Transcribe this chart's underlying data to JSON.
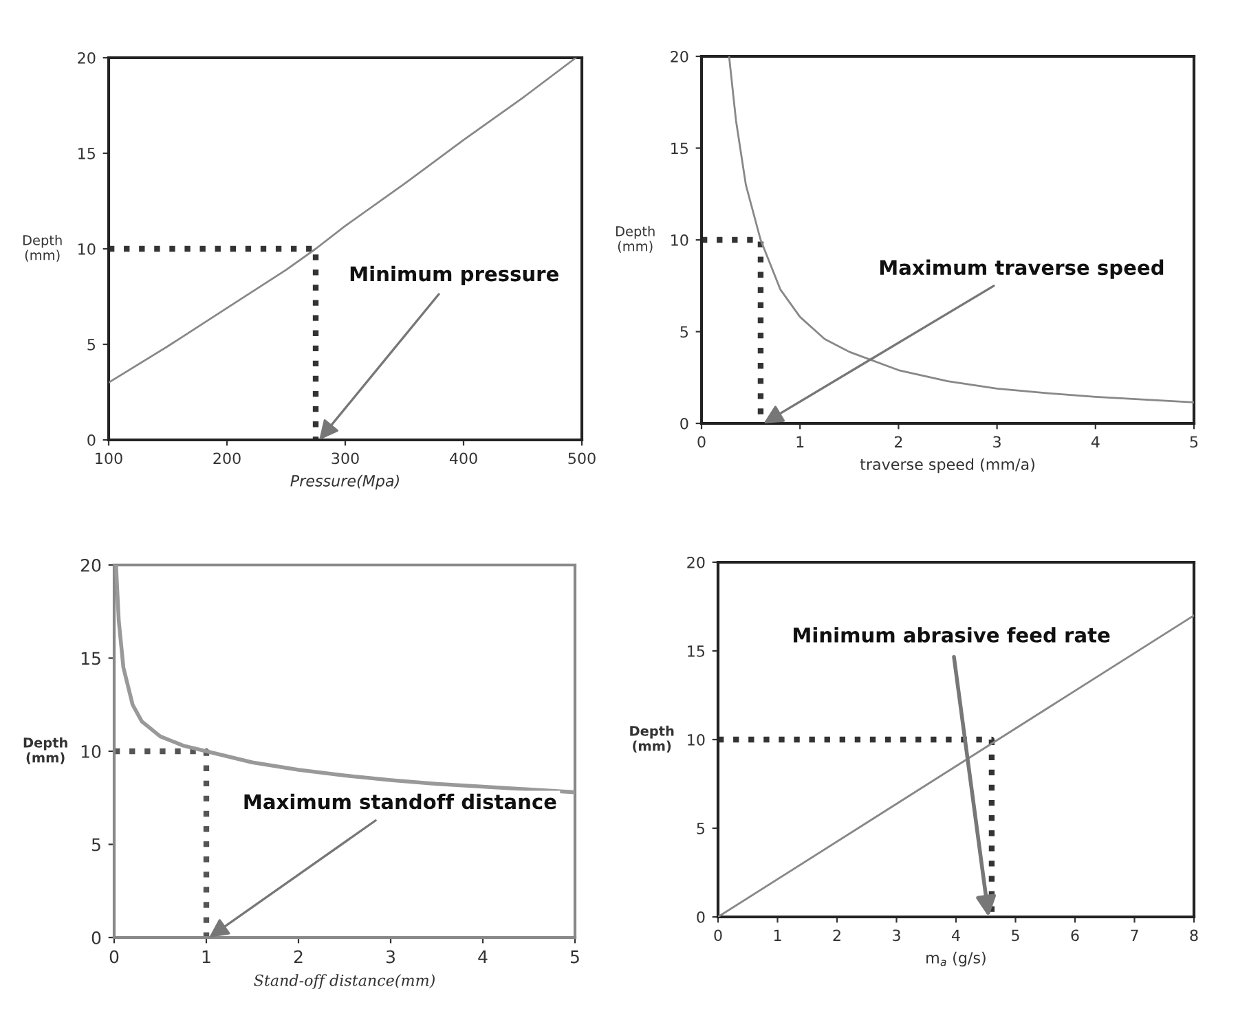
{
  "chart_data": [
    {
      "type": "line",
      "xlabel": "Pressure(Mpa)",
      "ylabel": "Depth\n(mm)",
      "xlim": [
        100,
        500
      ],
      "ylim": [
        0,
        20
      ],
      "xticks": [
        100,
        200,
        300,
        400,
        500
      ],
      "yticks": [
        0,
        5,
        10,
        15,
        20
      ],
      "series": [
        {
          "color": "#888888",
          "line_style": "solid",
          "x": [
            100,
            150,
            200,
            250,
            275,
            300,
            350,
            400,
            450,
            495
          ],
          "values": [
            3.0,
            4.9,
            6.9,
            8.9,
            10,
            11.2,
            13.4,
            15.7,
            17.9,
            20
          ]
        },
        {
          "color": "#333333",
          "line_style": "dotted",
          "x": [
            100,
            275,
            275
          ],
          "values": [
            10,
            10,
            0
          ]
        }
      ],
      "annotations": [
        {
          "text": "Minimum pressure",
          "x": 278,
          "y": 0
        }
      ]
    },
    {
      "type": "line",
      "xlabel": "traverse speed (mm/a)",
      "ylabel": "Depth\n(mm)",
      "xlim": [
        0,
        5
      ],
      "ylim": [
        0,
        20
      ],
      "xticks": [
        0,
        1,
        2,
        3,
        4,
        5
      ],
      "yticks": [
        0,
        5,
        10,
        15,
        20
      ],
      "series": [
        {
          "color": "#888888",
          "line_style": "solid",
          "x": [
            0.28,
            0.35,
            0.45,
            0.6,
            0.8,
            1,
            1.25,
            1.5,
            2,
            2.5,
            3,
            3.5,
            4,
            4.5,
            5
          ],
          "values": [
            20,
            16.5,
            13,
            10,
            7.3,
            5.8,
            4.6,
            3.9,
            2.9,
            2.3,
            1.9,
            1.65,
            1.45,
            1.3,
            1.15
          ]
        },
        {
          "color": "#333333",
          "line_style": "dotted",
          "x": [
            0,
            0.6,
            0.6
          ],
          "values": [
            10,
            10,
            0
          ]
        }
      ],
      "annotations": [
        {
          "text": "Maximum traverse speed",
          "x": 0.63,
          "y": 0
        }
      ]
    },
    {
      "type": "line",
      "xlabel": "Stand-off distance(mm)",
      "ylabel": "Depth\n(mm)",
      "xlim": [
        0,
        5
      ],
      "ylim": [
        0,
        20
      ],
      "xticks": [
        0,
        1,
        2,
        3,
        4,
        5
      ],
      "yticks": [
        0,
        5,
        10,
        15,
        20
      ],
      "series": [
        {
          "color": "#999999",
          "line_style": "solid",
          "x": [
            0.02,
            0.05,
            0.1,
            0.2,
            0.3,
            0.5,
            0.75,
            1,
            1.5,
            2,
            2.5,
            3,
            3.5,
            4,
            4.5,
            5
          ],
          "values": [
            20,
            17,
            14.5,
            12.5,
            11.6,
            10.8,
            10.3,
            10,
            9.4,
            9.0,
            8.7,
            8.45,
            8.25,
            8.1,
            7.95,
            7.8
          ]
        },
        {
          "color": "#555555",
          "line_style": "dotted",
          "x": [
            0,
            1,
            1
          ],
          "values": [
            10,
            10,
            0
          ]
        }
      ],
      "annotations": [
        {
          "text": "Maximum standoff distance",
          "x": 1.03,
          "y": 0
        }
      ]
    },
    {
      "type": "line",
      "xlabel": "m$_{a}$ (g/s)",
      "ylabel": "Depth\n(mm)",
      "xlim": [
        0,
        8
      ],
      "ylim": [
        0,
        20
      ],
      "xticks": [
        0,
        1,
        2,
        3,
        4,
        5,
        6,
        7,
        8
      ],
      "yticks": [
        0,
        5,
        10,
        15,
        20
      ],
      "series": [
        {
          "color": "#888888",
          "line_style": "solid",
          "x": [
            0,
            8
          ],
          "values": [
            0,
            17
          ]
        },
        {
          "color": "#333333",
          "line_style": "dotted",
          "x": [
            0,
            4.6,
            4.6
          ],
          "values": [
            10,
            10,
            0
          ]
        }
      ],
      "annotations": [
        {
          "text": "Minimum abrasive feed rate",
          "x": 4.55,
          "y": 0
        }
      ]
    }
  ]
}
